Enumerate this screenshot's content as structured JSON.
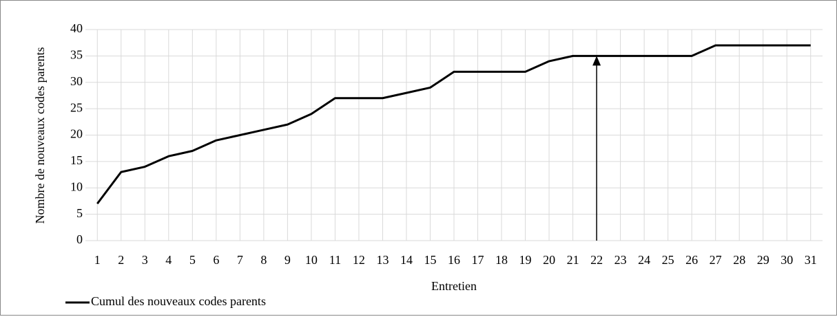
{
  "chart_data": {
    "type": "line",
    "y_label": "Nombre de nouveaux codes parents",
    "x_label": "Entretien",
    "categories": [
      "1",
      "2",
      "3",
      "4",
      "5",
      "6",
      "7",
      "8",
      "9",
      "10",
      "11",
      "12",
      "13",
      "14",
      "15",
      "16",
      "17",
      "18",
      "19",
      "20",
      "21",
      "22",
      "23",
      "24",
      "25",
      "26",
      "27",
      "28",
      "29",
      "30",
      "31"
    ],
    "series": [
      {
        "name": "Cumul des nouveaux codes parents",
        "color": "#000000",
        "values": [
          7,
          13,
          14,
          16,
          17,
          19,
          20,
          21,
          22,
          24,
          27,
          27,
          27,
          28,
          29,
          32,
          32,
          32,
          32,
          34,
          35,
          35,
          35,
          35,
          35,
          35,
          37,
          37,
          37,
          37,
          37
        ]
      }
    ],
    "ylim": [
      0,
      40
    ],
    "yticks": [
      0,
      5,
      10,
      15,
      20,
      25,
      30,
      35,
      40
    ],
    "grid": true,
    "legend": "bottom-left",
    "arrow": {
      "category": "22",
      "y": [
        0,
        35
      ]
    }
  }
}
